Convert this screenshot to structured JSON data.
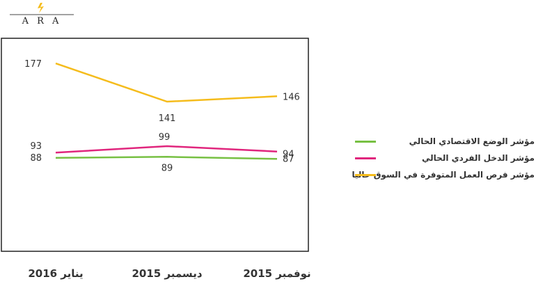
{
  "logo": {
    "text": "A R A",
    "mark": "lightning-bolt-icon"
  },
  "chart_data": {
    "type": "line",
    "categories": [
      "يناير 2016",
      "ديسمبر 2015",
      "نوفمبر 2015"
    ],
    "series": [
      {
        "name": "مؤشر فرص العمل المتوفرة في السوق حاليا",
        "color": "#f5bc1c",
        "values": [
          177,
          141,
          146
        ]
      },
      {
        "name": "مؤشر الدخل الفردي الحالي",
        "color": "#e0267d",
        "values": [
          93,
          99,
          94
        ]
      },
      {
        "name": "مؤشر الوضع الاقتصادي الحالي",
        "color": "#77c043",
        "values": [
          88,
          89,
          87
        ]
      }
    ],
    "legend_order": [
      2,
      1,
      0
    ],
    "legend_position": "right",
    "grid": false,
    "ylim": [
      0,
      200
    ],
    "xlabel": "",
    "ylabel": ""
  }
}
